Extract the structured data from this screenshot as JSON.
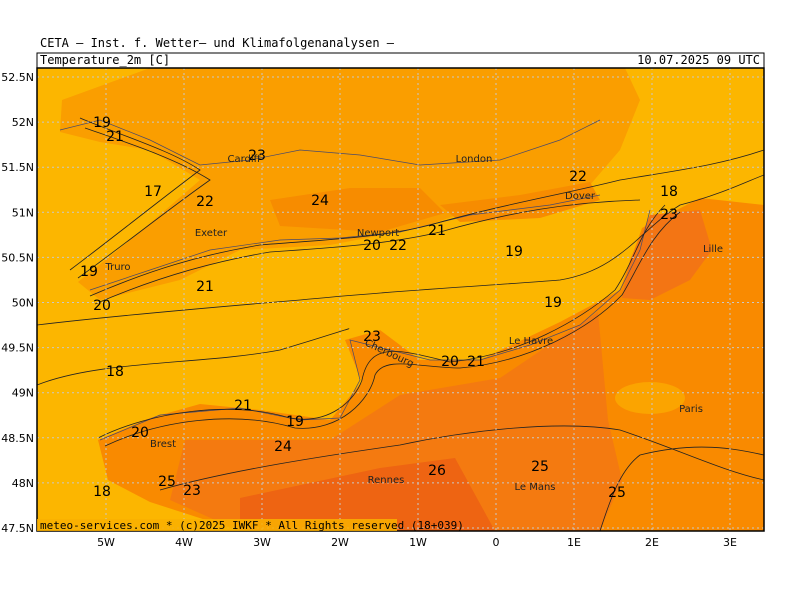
{
  "header": {
    "institute": "CETA – Inst. f. Wetter– und Klimafolgenanalysen –",
    "parameter": "Temperature_2m [C]",
    "valid_time": "10.07.2025 09 UTC"
  },
  "map": {
    "lat_labels": [
      "52.5N",
      "52N",
      "51.5N",
      "51N",
      "50.5N",
      "50N",
      "49.5N",
      "49N",
      "48.5N",
      "48N",
      "47.5N"
    ],
    "lon_labels": [
      "5W",
      "4W",
      "3W",
      "2W",
      "1W",
      "0",
      "1E",
      "2E",
      "3E"
    ],
    "contour_labels": [
      19,
      21,
      23,
      17,
      22,
      24,
      22,
      18,
      23,
      21,
      20,
      22,
      19,
      19,
      21,
      20,
      19,
      23,
      20,
      21,
      18,
      21,
      19,
      20,
      24,
      26,
      25,
      25,
      23,
      18,
      25
    ],
    "places": [
      "Cardiff",
      "London",
      "Dover",
      "Exeter",
      "Newport",
      "Truro",
      "Lille",
      "Le Havre",
      "Cherbourg",
      "Paris",
      "Brest",
      "Rennes",
      "Le Mans"
    ],
    "footer": "meteo-services.com * (c)2025 IWKF * All Rights reserved (18+039)"
  }
}
